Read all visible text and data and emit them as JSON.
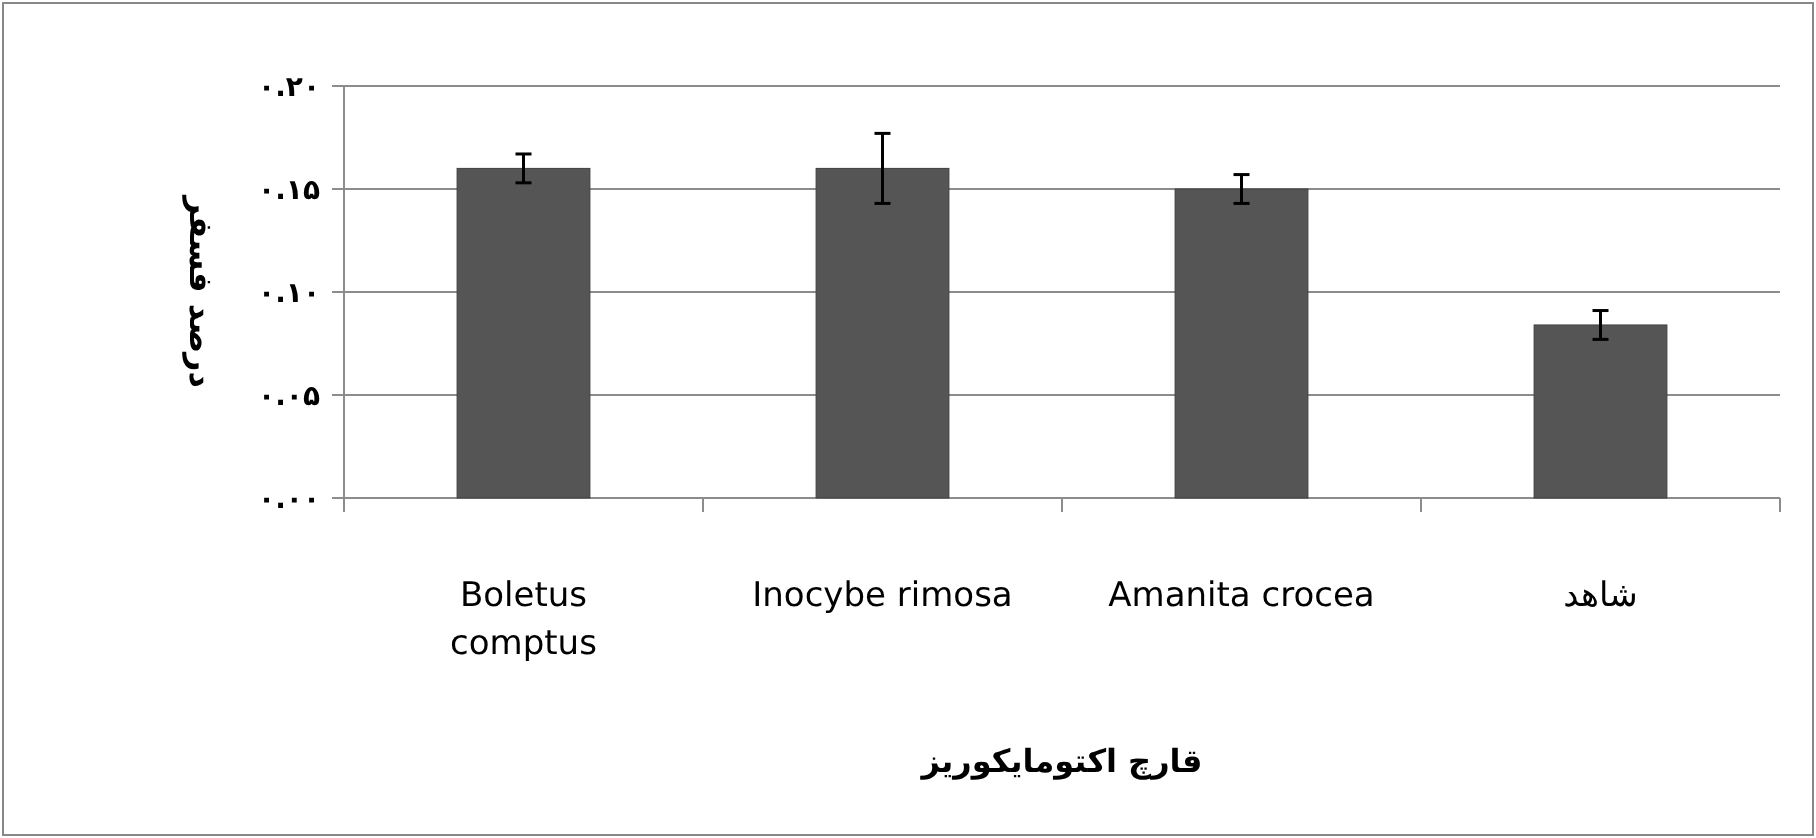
{
  "chart_data": {
    "type": "bar",
    "xlabel": "قارچ اکتومایکوریز",
    "ylabel": "درصد فسفر",
    "categories": [
      "Boletus comptus",
      "Inocybe rimosa",
      "Amanita crocea",
      "شاهد"
    ],
    "values": [
      0.16,
      0.16,
      0.15,
      0.084
    ],
    "errors": [
      0.007,
      0.017,
      0.007,
      0.007
    ],
    "color": "#555555",
    "ylim": [
      0,
      0.2
    ],
    "yticks": [
      {
        "value": 0,
        "label": "۰.۰۰"
      },
      {
        "value": 0.05,
        "label": "۰.۰۵"
      },
      {
        "value": 0.1,
        "label": "۰.۱۰"
      },
      {
        "value": 0.15,
        "label": "۰.۱۵"
      },
      {
        "value": 0.2,
        "label": "۰.۲۰"
      }
    ],
    "grid": "y"
  }
}
